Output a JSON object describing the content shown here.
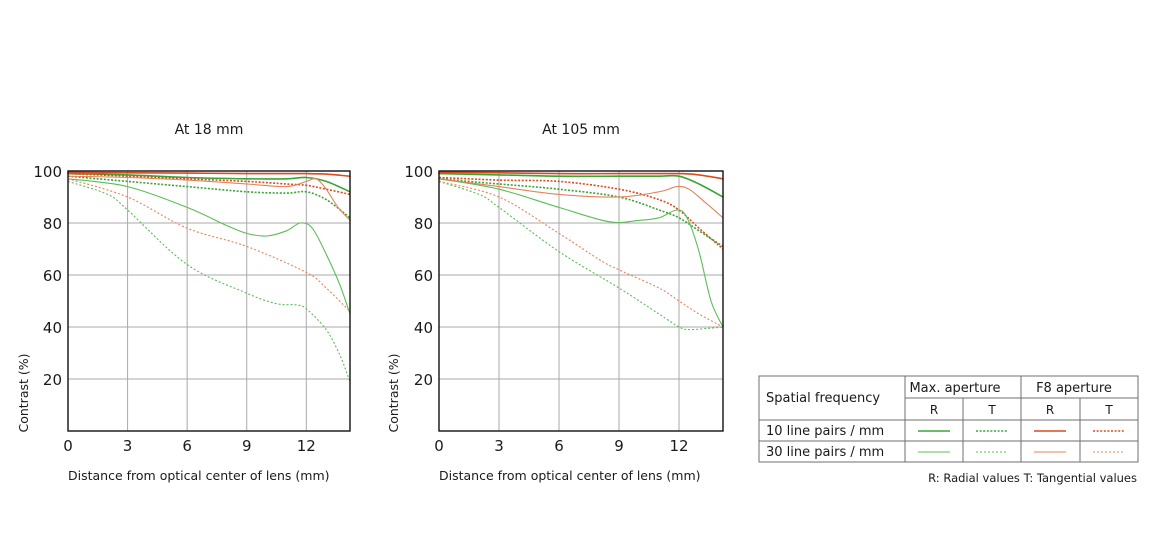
{
  "colors": {
    "max_aperture": "#3aa535",
    "max_aperture_30": "#5cbd55",
    "f8_aperture": "#dc4a1e",
    "f8_aperture_30": "#e6825a"
  },
  "chart_data": [
    {
      "type": "line",
      "title": "At 18 mm",
      "xlabel": "Distance from optical center of lens (mm)",
      "ylabel": "Contrast (%)",
      "xlim": [
        0,
        14.2
      ],
      "ylim": [
        0,
        100
      ],
      "x_ticks": [
        "0",
        "3",
        "6",
        "9",
        "12"
      ],
      "x_tick_values": [
        0,
        3,
        6,
        9,
        12
      ],
      "y_ticks": [
        "20",
        "40",
        "60",
        "80",
        "100"
      ],
      "y_tick_values": [
        20,
        40,
        60,
        80,
        100
      ],
      "series": [
        {
          "name": "10 line pairs / mm, Max. aperture, R",
          "freq": 10,
          "aperture": "max",
          "dir": "R",
          "points": [
            [
              0,
              99
            ],
            [
              3,
              98.5
            ],
            [
              6,
              97.5
            ],
            [
              9,
              97
            ],
            [
              11,
              97
            ],
            [
              12,
              97.5
            ],
            [
              13,
              96
            ],
            [
              14.2,
              92
            ]
          ]
        },
        {
          "name": "10 line pairs / mm, Max. aperture, T",
          "freq": 10,
          "aperture": "max",
          "dir": "T",
          "points": [
            [
              0,
              98
            ],
            [
              3,
              96
            ],
            [
              6,
              94
            ],
            [
              9,
              92
            ],
            [
              11,
              91.5
            ],
            [
              12,
              92
            ],
            [
              13,
              89
            ],
            [
              14.2,
              82
            ]
          ]
        },
        {
          "name": "10 line pairs / mm, F8 aperture, R",
          "freq": 10,
          "aperture": "f8",
          "dir": "R",
          "points": [
            [
              0,
              99.5
            ],
            [
              3,
              99.3
            ],
            [
              6,
              99.2
            ],
            [
              9,
              99
            ],
            [
              11,
              99
            ],
            [
              12,
              99
            ],
            [
              13,
              98.8
            ],
            [
              14.2,
              98
            ]
          ]
        },
        {
          "name": "10 line pairs / mm, F8 aperture, T",
          "freq": 10,
          "aperture": "f8",
          "dir": "T",
          "points": [
            [
              0,
              99
            ],
            [
              3,
              98
            ],
            [
              6,
              97
            ],
            [
              9,
              96
            ],
            [
              11,
              95
            ],
            [
              12,
              94.5
            ],
            [
              13,
              93
            ],
            [
              14.2,
              91
            ]
          ]
        },
        {
          "name": "30 line pairs / mm, Max. aperture, R",
          "freq": 30,
          "aperture": "max",
          "dir": "R",
          "points": [
            [
              0,
              97
            ],
            [
              3,
              94
            ],
            [
              6,
              86
            ],
            [
              8,
              79
            ],
            [
              9,
              76
            ],
            [
              10,
              75
            ],
            [
              11,
              77
            ],
            [
              11.7,
              80
            ],
            [
              12.3,
              78
            ],
            [
              13,
              68
            ],
            [
              13.7,
              56
            ],
            [
              14.2,
              45
            ]
          ]
        },
        {
          "name": "30 line pairs / mm, Max. aperture, T",
          "freq": 30,
          "aperture": "max",
          "dir": "T",
          "points": [
            [
              0,
              96
            ],
            [
              2,
              91
            ],
            [
              3,
              85
            ],
            [
              6,
              64
            ],
            [
              9,
              53
            ],
            [
              10.5,
              49
            ],
            [
              11.5,
              48.5
            ],
            [
              12,
              47
            ],
            [
              13,
              39
            ],
            [
              13.7,
              29
            ],
            [
              14.2,
              19
            ]
          ]
        },
        {
          "name": "30 line pairs / mm, F8 aperture, R",
          "freq": 30,
          "aperture": "f8",
          "dir": "R",
          "points": [
            [
              0,
              98
            ],
            [
              3,
              97.5
            ],
            [
              6,
              96.5
            ],
            [
              9,
              95
            ],
            [
              11,
              94
            ],
            [
              12,
              96
            ],
            [
              12.5,
              97
            ],
            [
              13,
              93
            ],
            [
              13.6,
              86
            ],
            [
              14.2,
              81
            ]
          ]
        },
        {
          "name": "30 line pairs / mm, F8 aperture, T",
          "freq": 30,
          "aperture": "f8",
          "dir": "T",
          "points": [
            [
              0,
              97
            ],
            [
              3,
              90
            ],
            [
              6,
              78
            ],
            [
              9,
              71
            ],
            [
              12,
              61
            ],
            [
              13,
              55
            ],
            [
              14.2,
              46
            ]
          ]
        }
      ]
    },
    {
      "type": "line",
      "title": "At 105 mm",
      "xlabel": "Distance from optical center of lens (mm)",
      "ylabel": "Contrast (%)",
      "xlim": [
        0,
        14.2
      ],
      "ylim": [
        0,
        100
      ],
      "x_ticks": [
        "0",
        "3",
        "6",
        "9",
        "12"
      ],
      "x_tick_values": [
        0,
        3,
        6,
        9,
        12
      ],
      "y_ticks": [
        "20",
        "40",
        "60",
        "80",
        "100"
      ],
      "y_tick_values": [
        20,
        40,
        60,
        80,
        100
      ],
      "series": [
        {
          "name": "10 line pairs / mm, Max. aperture, R",
          "freq": 10,
          "aperture": "max",
          "dir": "R",
          "points": [
            [
              0,
              99
            ],
            [
              3,
              98.5
            ],
            [
              6,
              98
            ],
            [
              9,
              98
            ],
            [
              11,
              98
            ],
            [
              12,
              98
            ],
            [
              13,
              95
            ],
            [
              14.2,
              90
            ]
          ]
        },
        {
          "name": "10 line pairs / mm, Max. aperture, T",
          "freq": 10,
          "aperture": "max",
          "dir": "T",
          "points": [
            [
              0,
              97
            ],
            [
              3,
              95
            ],
            [
              6,
              93
            ],
            [
              9,
              90
            ],
            [
              11,
              85
            ],
            [
              12,
              82
            ],
            [
              13,
              77
            ],
            [
              14.2,
              71
            ]
          ]
        },
        {
          "name": "10 line pairs / mm, F8 aperture, R",
          "freq": 10,
          "aperture": "f8",
          "dir": "R",
          "points": [
            [
              0,
              99.5
            ],
            [
              3,
              99.3
            ],
            [
              6,
              99
            ],
            [
              9,
              99
            ],
            [
              12,
              99
            ],
            [
              13,
              98.5
            ],
            [
              14.2,
              97
            ]
          ]
        },
        {
          "name": "10 line pairs / mm, F8 aperture, T",
          "freq": 10,
          "aperture": "f8",
          "dir": "T",
          "points": [
            [
              0,
              97.5
            ],
            [
              3,
              96.5
            ],
            [
              6,
              96
            ],
            [
              9,
              93
            ],
            [
              11,
              89
            ],
            [
              12,
              85
            ],
            [
              13,
              78
            ],
            [
              14.2,
              70
            ]
          ]
        },
        {
          "name": "30 line pairs / mm, Max. aperture, R",
          "freq": 30,
          "aperture": "max",
          "dir": "R",
          "points": [
            [
              0,
              97
            ],
            [
              3,
              93
            ],
            [
              6,
              86
            ],
            [
              8.5,
              80.5
            ],
            [
              10,
              81
            ],
            [
              11,
              82
            ],
            [
              11.9,
              85
            ],
            [
              12.4,
              82
            ],
            [
              13,
              69
            ],
            [
              13.6,
              50
            ],
            [
              14.2,
              40
            ]
          ]
        },
        {
          "name": "30 line pairs / mm, Max. aperture, T",
          "freq": 30,
          "aperture": "max",
          "dir": "T",
          "points": [
            [
              0,
              96
            ],
            [
              2,
              91
            ],
            [
              3,
              86
            ],
            [
              6,
              69
            ],
            [
              9,
              55
            ],
            [
              11,
              45
            ],
            [
              12,
              40
            ],
            [
              12.5,
              39
            ],
            [
              13.5,
              39.5
            ],
            [
              14.2,
              40
            ]
          ]
        },
        {
          "name": "30 line pairs / mm, F8 aperture, R",
          "freq": 30,
          "aperture": "f8",
          "dir": "R",
          "points": [
            [
              0,
              97
            ],
            [
              3,
              94
            ],
            [
              6,
              91
            ],
            [
              9,
              90
            ],
            [
              11,
              92
            ],
            [
              11.9,
              94
            ],
            [
              12.5,
              93
            ],
            [
              13.3,
              88
            ],
            [
              14.2,
              82
            ]
          ]
        },
        {
          "name": "30 line pairs / mm, F8 aperture, T",
          "freq": 30,
          "aperture": "f8",
          "dir": "T",
          "points": [
            [
              0,
              96
            ],
            [
              3,
              90
            ],
            [
              6,
              76
            ],
            [
              8,
              66
            ],
            [
              9,
              62
            ],
            [
              11,
              55
            ],
            [
              12,
              50
            ],
            [
              13,
              45
            ],
            [
              14.2,
              40
            ]
          ]
        }
      ]
    }
  ],
  "legend": {
    "header_label": "Spatial frequency",
    "group_max": "Max. aperture",
    "group_f8": "F8 aperture",
    "col_r": "R",
    "col_t": "T",
    "row_10": "10 line pairs / mm",
    "row_30": "30 line pairs / mm",
    "note": "R: Radial values  T: Tangential values"
  }
}
